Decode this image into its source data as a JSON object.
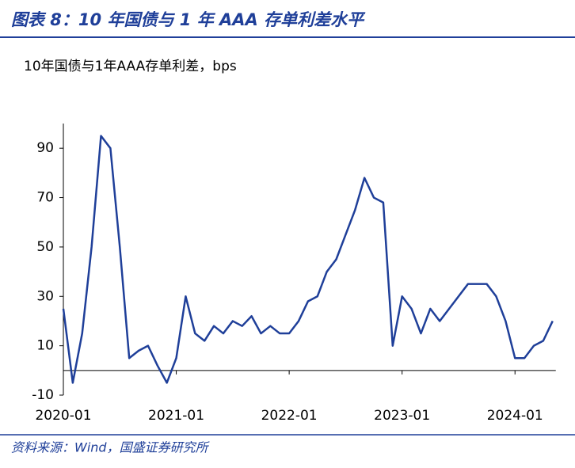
{
  "chart_data": {
    "type": "line",
    "title": "图表 8：10 年国债与 1 年 AAA 存单利差水平",
    "subtitle": "10年国债与1年AAA存单利差，bps",
    "source": "资料来源：Wind，国盛证券研究所",
    "x": [
      "2020-01",
      "2020-02",
      "2020-03",
      "2020-04",
      "2020-05",
      "2020-06",
      "2020-07",
      "2020-08",
      "2020-09",
      "2020-10",
      "2020-11",
      "2020-12",
      "2021-01",
      "2021-02",
      "2021-03",
      "2021-04",
      "2021-05",
      "2021-06",
      "2021-07",
      "2021-08",
      "2021-09",
      "2021-10",
      "2021-11",
      "2021-12",
      "2022-01",
      "2022-02",
      "2022-03",
      "2022-04",
      "2022-05",
      "2022-06",
      "2022-07",
      "2022-08",
      "2022-09",
      "2022-10",
      "2022-11",
      "2022-12",
      "2023-01",
      "2023-02",
      "2023-03",
      "2023-04",
      "2023-05",
      "2023-06",
      "2023-07",
      "2023-08",
      "2023-09",
      "2023-10",
      "2023-11",
      "2023-12",
      "2024-01",
      "2024-02",
      "2024-03",
      "2024-04",
      "2024-05"
    ],
    "series": [
      {
        "name": "10年国债与1年AAA存单利差",
        "color": "#1f3f99",
        "values": [
          25,
          -5,
          15,
          50,
          95,
          90,
          50,
          5,
          8,
          10,
          2,
          -5,
          5,
          30,
          15,
          12,
          18,
          15,
          20,
          18,
          22,
          15,
          18,
          15,
          15,
          20,
          28,
          30,
          40,
          45,
          55,
          65,
          78,
          70,
          68,
          10,
          30,
          25,
          15,
          25,
          20,
          25,
          30,
          35,
          35,
          35,
          30,
          20,
          5,
          5,
          10,
          12,
          20
        ]
      }
    ],
    "xticks": [
      "2020-01",
      "2021-01",
      "2022-01",
      "2023-01",
      "2024-01"
    ],
    "ylim": [
      -10,
      100
    ],
    "yticks": [
      -10,
      10,
      30,
      50,
      70,
      90
    ]
  }
}
